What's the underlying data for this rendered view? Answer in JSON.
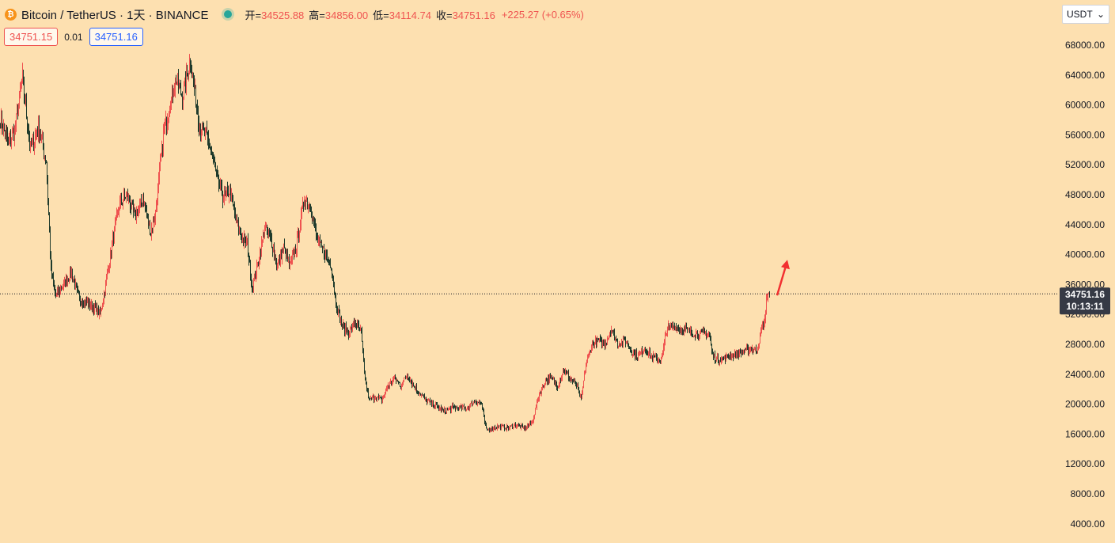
{
  "header": {
    "coin_icon": "₿",
    "symbol": "Bitcoin / TetherUS · 1天 · BINANCE",
    "ohlc": [
      {
        "key": "开=",
        "value": "34525.88"
      },
      {
        "key": "高=",
        "value": "34856.00"
      },
      {
        "key": "低=",
        "value": "34114.74"
      },
      {
        "key": "收=",
        "value": "34751.16"
      }
    ],
    "change": "+225.27 (+0.65%)"
  },
  "quote": {
    "sell": "34751.15",
    "spread": "0.01",
    "buy": "34751.16"
  },
  "currency": {
    "label": "USDT",
    "chevron": "⌄"
  },
  "price_tag": {
    "price": "34751.16",
    "countdown": "10:13:11"
  },
  "colors": {
    "background": "#fde0b0",
    "up": "#ef5350",
    "down": "#1f3b2c",
    "arrow": "#f23030",
    "tag": "#363a45"
  },
  "chart_data": {
    "type": "candlestick",
    "symbol": "BTCUSDT",
    "interval": "1D",
    "ylim": [
      2000,
      70000
    ],
    "y_ticks": [
      4000,
      8000,
      12000,
      16000,
      20000,
      24000,
      28000,
      32000,
      36000,
      40000,
      44000,
      48000,
      52000,
      56000,
      60000,
      64000,
      68000
    ],
    "y_tick_labels": [
      "4000.00",
      "8000.00",
      "12000.00",
      "16000.00",
      "20000.00",
      "24000.00",
      "28000.00",
      "32000.00",
      "36000.00",
      "40000.00",
      "44000.00",
      "48000.00",
      "52000.00",
      "56000.00",
      "60000.00",
      "64000.00",
      "68000.00"
    ],
    "last_price": 34751.16,
    "grid": false,
    "close_path_approx": [
      [
        0,
        58000
      ],
      [
        10,
        55000
      ],
      [
        18,
        56500
      ],
      [
        28,
        63500
      ],
      [
        38,
        54000
      ],
      [
        48,
        57000
      ],
      [
        58,
        52500
      ],
      [
        64,
        38000
      ],
      [
        70,
        34500
      ],
      [
        80,
        36000
      ],
      [
        90,
        37500
      ],
      [
        100,
        34000
      ],
      [
        110,
        33500
      ],
      [
        118,
        33000
      ],
      [
        126,
        32000
      ],
      [
        134,
        36500
      ],
      [
        142,
        42000
      ],
      [
        150,
        46500
      ],
      [
        160,
        48000
      ],
      [
        170,
        45000
      ],
      [
        180,
        47500
      ],
      [
        190,
        43000
      ],
      [
        196,
        45500
      ],
      [
        206,
        56000
      ],
      [
        214,
        60000
      ],
      [
        222,
        63500
      ],
      [
        230,
        61000
      ],
      [
        240,
        66000
      ],
      [
        246,
        61500
      ],
      [
        252,
        57000
      ],
      [
        260,
        56000
      ],
      [
        266,
        54000
      ],
      [
        274,
        50000
      ],
      [
        282,
        47500
      ],
      [
        290,
        48500
      ],
      [
        298,
        44500
      ],
      [
        306,
        42000
      ],
      [
        312,
        41500
      ],
      [
        318,
        35500
      ],
      [
        326,
        39000
      ],
      [
        334,
        43500
      ],
      [
        342,
        42000
      ],
      [
        350,
        38500
      ],
      [
        358,
        41000
      ],
      [
        366,
        38500
      ],
      [
        374,
        41000
      ],
      [
        384,
        47500
      ],
      [
        392,
        46500
      ],
      [
        400,
        42000
      ],
      [
        408,
        40500
      ],
      [
        418,
        38500
      ],
      [
        424,
        33500
      ],
      [
        432,
        30500
      ],
      [
        440,
        29500
      ],
      [
        448,
        31000
      ],
      [
        456,
        29500
      ],
      [
        460,
        24000
      ],
      [
        466,
        20500
      ],
      [
        474,
        21000
      ],
      [
        482,
        20500
      ],
      [
        490,
        22500
      ],
      [
        498,
        23500
      ],
      [
        506,
        22500
      ],
      [
        514,
        24000
      ],
      [
        522,
        22500
      ],
      [
        530,
        21500
      ],
      [
        538,
        20500
      ],
      [
        546,
        20000
      ],
      [
        554,
        19500
      ],
      [
        562,
        19000
      ],
      [
        570,
        19500
      ],
      [
        580,
        19500
      ],
      [
        590,
        19500
      ],
      [
        600,
        20500
      ],
      [
        608,
        20000
      ],
      [
        614,
        16500
      ],
      [
        622,
        16800
      ],
      [
        632,
        17000
      ],
      [
        642,
        16800
      ],
      [
        652,
        17200
      ],
      [
        662,
        16800
      ],
      [
        672,
        17500
      ],
      [
        680,
        21000
      ],
      [
        688,
        23000
      ],
      [
        696,
        23500
      ],
      [
        704,
        22500
      ],
      [
        712,
        24500
      ],
      [
        720,
        23500
      ],
      [
        728,
        22500
      ],
      [
        734,
        20500
      ],
      [
        740,
        25500
      ],
      [
        748,
        28000
      ],
      [
        756,
        28500
      ],
      [
        764,
        28000
      ],
      [
        772,
        30000
      ],
      [
        780,
        28000
      ],
      [
        790,
        28500
      ],
      [
        798,
        27000
      ],
      [
        806,
        26500
      ],
      [
        814,
        27500
      ],
      [
        822,
        26500
      ],
      [
        830,
        26000
      ],
      [
        836,
        26200
      ],
      [
        842,
        30000
      ],
      [
        850,
        30500
      ],
      [
        858,
        30200
      ],
      [
        866,
        30000
      ],
      [
        874,
        29500
      ],
      [
        882,
        29500
      ],
      [
        890,
        29500
      ],
      [
        896,
        29200
      ],
      [
        900,
        26500
      ],
      [
        908,
        26000
      ],
      [
        916,
        26200
      ],
      [
        924,
        26500
      ],
      [
        932,
        26700
      ],
      [
        940,
        27000
      ],
      [
        948,
        27500
      ],
      [
        956,
        27200
      ],
      [
        962,
        30000
      ],
      [
        966,
        31000
      ],
      [
        968,
        34200
      ],
      [
        972,
        34751.16
      ]
    ],
    "annotations": [
      {
        "type": "arrow",
        "direction": "up",
        "color": "#f23030"
      }
    ]
  }
}
